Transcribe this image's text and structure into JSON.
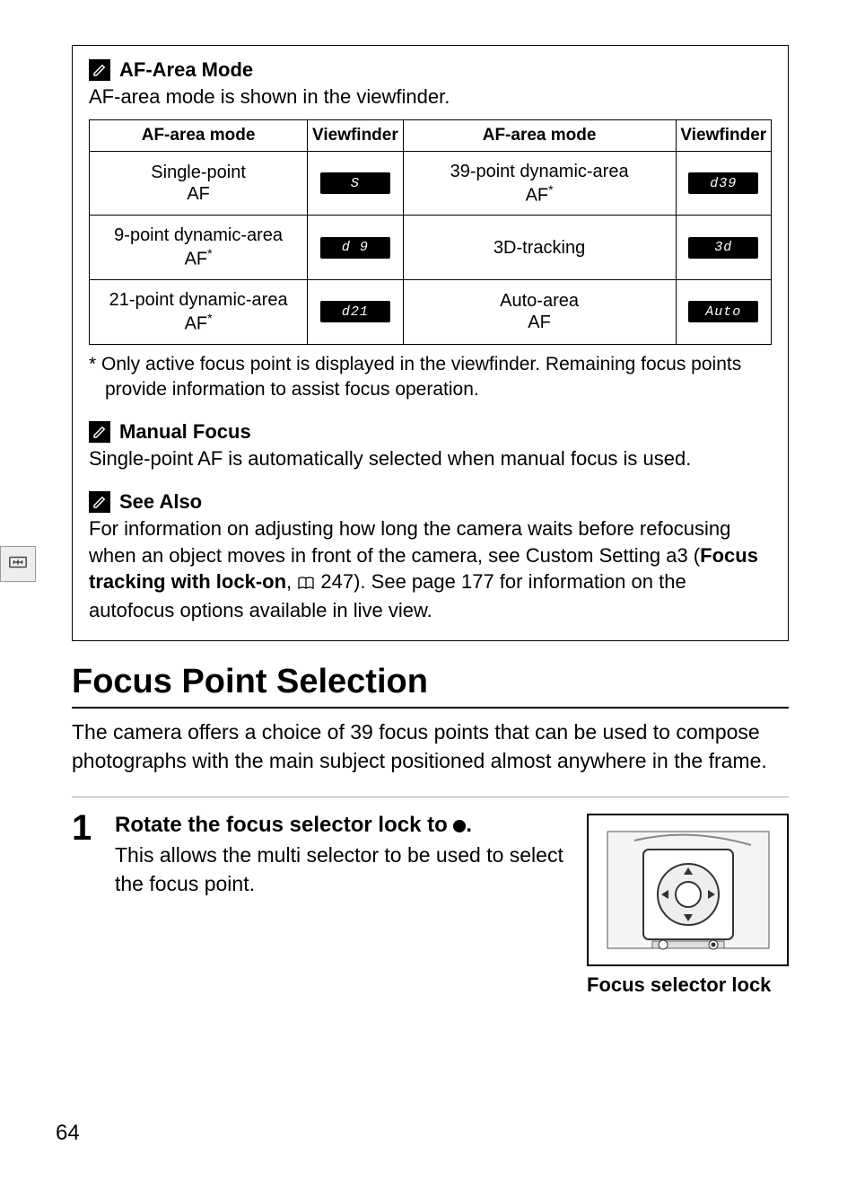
{
  "colors": {
    "page_bg": "#ffffff",
    "text": "#000000",
    "border": "#000000",
    "lcd_bg": "#000000",
    "lcd_text": "#ffffff",
    "side_tab_bg": "#eeeeee"
  },
  "side_tab": {
    "icon_name": "viewfinder-focus-icon"
  },
  "info_box": {
    "af_area_mode": {
      "title": "AF-Area Mode",
      "desc": "AF-area mode is shown in the viewfinder.",
      "table": {
        "columns": [
          "AF-area mode",
          "Viewfinder",
          "AF-area mode",
          "Viewfinder"
        ],
        "rows": [
          {
            "left_mode": "Single-point AF",
            "left_sup": false,
            "left_lcd": "S",
            "right_mode": "39-point dynamic-area AF",
            "right_sup": true,
            "right_lcd": "d39"
          },
          {
            "left_mode": "9-point dynamic-area AF",
            "left_sup": true,
            "left_lcd": "d 9",
            "right_mode": "3D-tracking",
            "right_sup": false,
            "right_lcd": "3d"
          },
          {
            "left_mode": "21-point dynamic-area AF",
            "left_sup": true,
            "left_lcd": "d21",
            "right_mode": "Auto-area AF",
            "right_sup": false,
            "right_lcd": "Auto"
          }
        ],
        "col_widths": [
          "32%",
          "14%",
          "40%",
          "14%"
        ]
      },
      "footnote": "* Only active focus point is displayed in the viewfinder.  Remaining focus points provide information to assist focus operation."
    },
    "manual_focus": {
      "title": "Manual Focus",
      "desc": "Single-point AF is automatically selected when manual focus is used."
    },
    "see_also": {
      "title": "See Also",
      "text_before": "For information on adjusting how long the camera waits before refocusing when an object moves in front of the camera, see Custom Setting a3 (",
      "bold": "Focus tracking with lock-on",
      "text_mid": ", ",
      "page_ref": "247",
      "text_after": ").  See page 177 for information on the autofocus options available in live view."
    }
  },
  "focus_point": {
    "heading": "Focus Point Selection",
    "intro": "The camera offers a choice of 39 focus points that can be used to compose photographs with the main subject positioned almost anywhere in the frame.",
    "step1": {
      "num": "1",
      "head_before": "Rotate the focus selector lock to ",
      "head_after": ".",
      "body": "This allows the multi selector to be used to select the focus point.",
      "caption": "Focus selector lock"
    }
  },
  "page_number": "64"
}
